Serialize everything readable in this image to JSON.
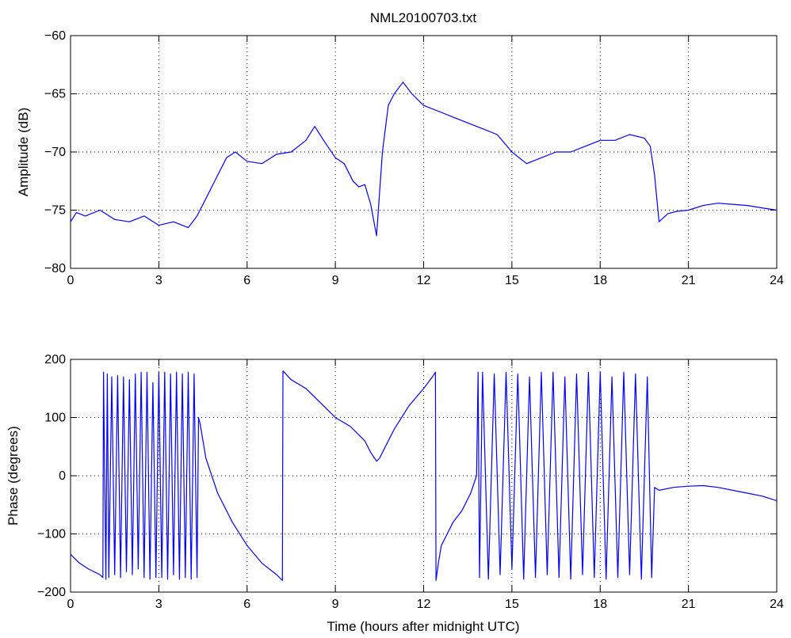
{
  "chart_data": [
    {
      "type": "line",
      "title": "NML20100703.txt",
      "xlabel": "",
      "ylabel": "Amplitude (dB)",
      "xlim": [
        0,
        24
      ],
      "ylim": [
        -80,
        -60
      ],
      "xticks": [
        0,
        3,
        6,
        9,
        12,
        15,
        18,
        21,
        24
      ],
      "yticks": [
        -80,
        -75,
        -70,
        -65,
        -60
      ],
      "xtick_labels": [
        "0",
        "3",
        "6",
        "9",
        "12",
        "15",
        "18",
        "21",
        "24"
      ],
      "ytick_labels": [
        "−80",
        "−75",
        "−70",
        "−65",
        "−60"
      ],
      "grid": true,
      "line_color": "#0000ff",
      "series": [
        {
          "x": [
            0,
            0.2,
            0.5,
            1.0,
            1.5,
            2.0,
            2.5,
            3.0,
            3.5,
            4.0,
            4.3,
            4.6,
            4.8,
            5.0,
            5.3,
            5.6,
            6.0,
            6.5,
            7.0,
            7.5,
            8.0,
            8.3,
            8.6,
            9.0,
            9.3,
            9.6,
            9.8,
            10.0,
            10.2,
            10.4,
            10.6,
            10.8,
            11.0,
            11.3,
            11.6,
            12.0,
            12.5,
            13.0,
            13.5,
            14.0,
            14.5,
            15.0,
            15.5,
            16.0,
            16.5,
            17.0,
            17.5,
            18.0,
            18.5,
            19.0,
            19.5,
            19.7,
            19.85,
            20.0,
            20.3,
            20.6,
            21.0,
            21.5,
            22.0,
            22.5,
            23.0,
            23.5,
            24.0
          ],
          "y": [
            -76.0,
            -75.2,
            -75.5,
            -75.0,
            -75.8,
            -76.0,
            -75.5,
            -76.3,
            -76.0,
            -76.5,
            -75.5,
            -74.0,
            -73.0,
            -72.0,
            -70.5,
            -70.0,
            -70.8,
            -71.0,
            -70.2,
            -70.0,
            -69.0,
            -67.8,
            -69.0,
            -70.5,
            -71.0,
            -72.5,
            -73.0,
            -72.8,
            -74.5,
            -77.2,
            -70.0,
            -66.0,
            -65.0,
            -64.0,
            -65.0,
            -66.0,
            -66.5,
            -67.0,
            -67.5,
            -68.0,
            -68.5,
            -70.0,
            -71.0,
            -70.5,
            -70.0,
            -70.0,
            -69.5,
            -69.0,
            -69.0,
            -68.5,
            -68.8,
            -69.5,
            -72.0,
            -76.0,
            -75.3,
            -75.1,
            -75.0,
            -74.6,
            -74.4,
            -74.5,
            -74.6,
            -74.8,
            -75.0
          ]
        }
      ]
    },
    {
      "type": "line",
      "title": "",
      "xlabel": "Time (hours after midnight UTC)",
      "ylabel": "Phase (degrees)",
      "xlim": [
        0,
        24
      ],
      "ylim": [
        -200,
        200
      ],
      "xticks": [
        0,
        3,
        6,
        9,
        12,
        15,
        18,
        21,
        24
      ],
      "yticks": [
        -200,
        -100,
        0,
        100,
        200
      ],
      "xtick_labels": [
        "0",
        "3",
        "6",
        "9",
        "12",
        "15",
        "18",
        "21",
        "24"
      ],
      "ytick_labels": [
        "−200",
        "−100",
        "0",
        "100",
        "200"
      ],
      "grid": true,
      "line_color": "#0000ff",
      "series": [
        {
          "x": [
            0,
            0.3,
            0.6,
            1.0,
            1.1,
            1.12,
            1.2,
            1.25,
            1.3,
            1.4,
            1.5,
            1.6,
            1.7,
            1.8,
            1.9,
            2.0,
            2.1,
            2.2,
            2.3,
            2.4,
            2.5,
            2.6,
            2.7,
            2.8,
            2.9,
            3.0,
            3.1,
            3.2,
            3.3,
            3.4,
            3.5,
            3.6,
            3.7,
            3.8,
            3.9,
            4.0,
            4.1,
            4.2,
            4.3,
            4.35,
            4.4,
            4.5,
            4.6,
            4.8,
            5.0,
            5.5,
            6.0,
            6.5,
            7.0,
            7.2,
            7.22,
            7.5,
            8.0,
            8.5,
            9.0,
            9.5,
            10.0,
            10.2,
            10.4,
            10.5,
            10.7,
            11.0,
            11.5,
            12.0,
            12.3,
            12.4,
            12.42,
            12.5,
            12.6,
            12.8,
            13.0,
            13.3,
            13.6,
            13.8,
            13.85,
            13.9,
            14.0,
            14.2,
            14.4,
            14.6,
            14.8,
            15.0,
            15.2,
            15.4,
            15.6,
            15.8,
            16.0,
            16.2,
            16.4,
            16.6,
            16.8,
            17.0,
            17.2,
            17.4,
            17.6,
            17.8,
            18.0,
            18.2,
            18.4,
            18.6,
            18.8,
            19.0,
            19.2,
            19.4,
            19.6,
            19.75,
            19.85,
            20.0,
            20.5,
            21.0,
            21.5,
            22.0,
            22.5,
            23.0,
            23.5,
            24.0
          ],
          "y": [
            -135,
            -150,
            -160,
            -170,
            -175,
            178,
            -178,
            175,
            -175,
            170,
            -170,
            172,
            -175,
            170,
            -165,
            165,
            -170,
            175,
            -160,
            178,
            -175,
            178,
            -178,
            160,
            -175,
            178,
            -175,
            178,
            -178,
            175,
            -170,
            178,
            -178,
            175,
            -175,
            178,
            -178,
            175,
            -175,
            100,
            90,
            60,
            30,
            0,
            -30,
            -80,
            -120,
            -150,
            -170,
            -180,
            180,
            165,
            150,
            125,
            100,
            85,
            60,
            40,
            25,
            30,
            50,
            80,
            120,
            150,
            170,
            178,
            -180,
            -150,
            -120,
            -100,
            -80,
            -60,
            -30,
            0,
            178,
            -175,
            178,
            -178,
            175,
            -170,
            178,
            -160,
            175,
            -178,
            170,
            -175,
            178,
            -170,
            178,
            -175,
            170,
            -178,
            175,
            -170,
            178,
            -175,
            178,
            -178,
            170,
            -175,
            178,
            -170,
            175,
            -178,
            170,
            -175,
            -20,
            -25,
            -20,
            -18,
            -17,
            -20,
            -25,
            -30,
            -35,
            -43
          ]
        }
      ]
    }
  ]
}
